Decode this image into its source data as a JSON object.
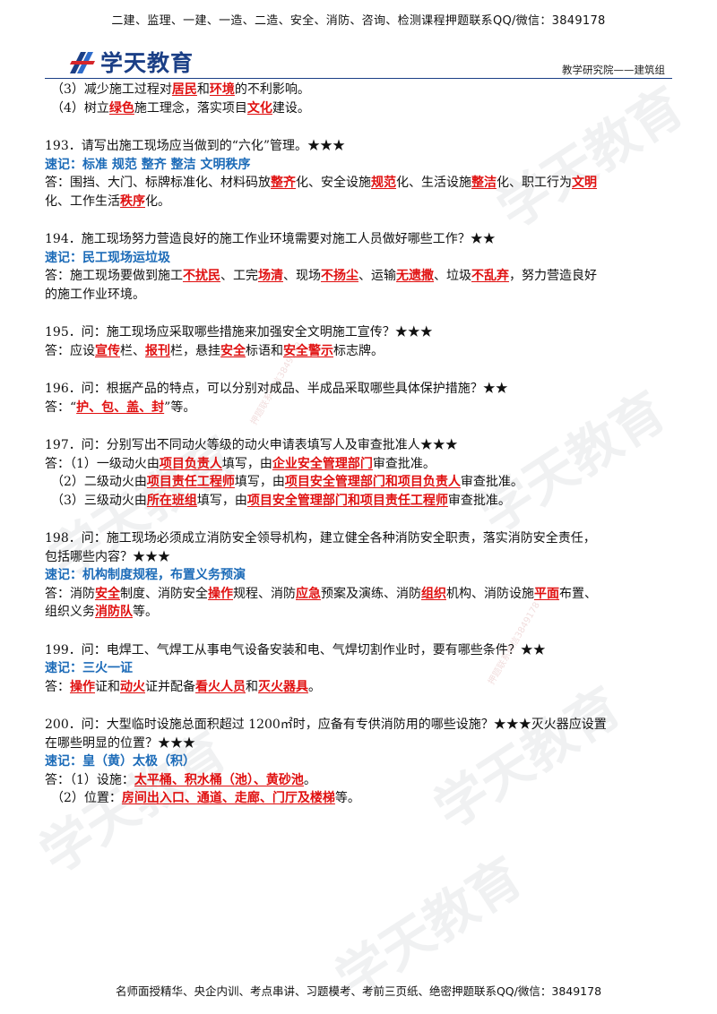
{
  "header": {
    "top_text": "二建、监理、一建、一造、二造、安全、消防、咨询、检测课程押题联系QQ/微信：3849178",
    "logo_text": "学天教育",
    "dept": "教学研究院——建筑组"
  },
  "watermark": {
    "text": "学天教育",
    "small": "押题联系微信3849178"
  },
  "blocks": [
    {
      "type": "line",
      "indent": true,
      "parts": [
        {
          "t": "（3）减少施工过程对"
        },
        {
          "t": "居民",
          "r": 1
        },
        {
          "t": "和"
        },
        {
          "t": "环境",
          "r": 1
        },
        {
          "t": "的不利影响。"
        }
      ]
    },
    {
      "type": "line",
      "indent": true,
      "parts": [
        {
          "t": "（4）树立"
        },
        {
          "t": "绿色",
          "r": 1
        },
        {
          "t": "施工理念，落实项目"
        },
        {
          "t": "文化",
          "r": 1
        },
        {
          "t": "建设。"
        }
      ]
    },
    {
      "type": "gap"
    },
    {
      "type": "line",
      "parts": [
        {
          "t": "193．请写出施工现场应当做到的“六化”管理。★★★"
        }
      ]
    },
    {
      "type": "line",
      "parts": [
        {
          "t": "速记：标准 规范 整齐 整洁 文明秩序",
          "sj": 1
        }
      ]
    },
    {
      "type": "line",
      "parts": [
        {
          "t": "答：围挡、大门、标牌标准化、材料码放"
        },
        {
          "t": "整齐",
          "r": 1
        },
        {
          "t": "化、安全设施"
        },
        {
          "t": "规范",
          "r": 1
        },
        {
          "t": "化、生活设施"
        },
        {
          "t": "整洁",
          "r": 1
        },
        {
          "t": "化、职工行为"
        },
        {
          "t": "文明",
          "r": 1
        }
      ]
    },
    {
      "type": "line",
      "parts": [
        {
          "t": "化、工作生活"
        },
        {
          "t": "秩序",
          "r": 1
        },
        {
          "t": "化。"
        }
      ]
    },
    {
      "type": "gap"
    },
    {
      "type": "line",
      "parts": [
        {
          "t": "194．施工现场努力营造良好的施工作业环境需要对施工人员做好哪些工作？★★"
        }
      ]
    },
    {
      "type": "line",
      "parts": [
        {
          "t": "速记：民工现场运垃圾",
          "sj": 1
        }
      ]
    },
    {
      "type": "line",
      "parts": [
        {
          "t": "答：施工现场要做到施工"
        },
        {
          "t": "不扰民",
          "r": 1
        },
        {
          "t": "、工完"
        },
        {
          "t": "场清",
          "r": 1
        },
        {
          "t": "、现场"
        },
        {
          "t": "不扬尘",
          "r": 1
        },
        {
          "t": "、运输"
        },
        {
          "t": "无遗撒",
          "r": 1
        },
        {
          "t": "、垃圾"
        },
        {
          "t": "不乱弃",
          "r": 1
        },
        {
          "t": "，努力营造良好"
        }
      ]
    },
    {
      "type": "line",
      "parts": [
        {
          "t": "的施工作业环境。"
        }
      ]
    },
    {
      "type": "gap"
    },
    {
      "type": "line",
      "parts": [
        {
          "t": "195．问：施工现场应采取哪些措施来加强安全文明施工宣传？★★★"
        }
      ]
    },
    {
      "type": "line",
      "parts": [
        {
          "t": "答：应设"
        },
        {
          "t": "宣传",
          "r": 1
        },
        {
          "t": "栏、"
        },
        {
          "t": "报刊",
          "r": 1
        },
        {
          "t": "栏，悬挂"
        },
        {
          "t": "安全",
          "r": 1
        },
        {
          "t": "标语和"
        },
        {
          "t": "安全警示",
          "r": 1
        },
        {
          "t": "标志牌。"
        }
      ]
    },
    {
      "type": "gap"
    },
    {
      "type": "line",
      "parts": [
        {
          "t": "196．问：根据产品的特点，可以分别对成品、半成品采取哪些具体保护措施？★★"
        }
      ]
    },
    {
      "type": "line",
      "parts": [
        {
          "t": "答：“"
        },
        {
          "t": "护、包、盖、封",
          "r": 1
        },
        {
          "t": "”等。"
        }
      ]
    },
    {
      "type": "gap"
    },
    {
      "type": "line",
      "parts": [
        {
          "t": "197．问：分别写出不同动火等级的动火申请表填写人及审查批准人★★★"
        }
      ]
    },
    {
      "type": "line",
      "parts": [
        {
          "t": "答：（1）一级动火由"
        },
        {
          "t": "项目负责人",
          "r": 1
        },
        {
          "t": "填写，由"
        },
        {
          "t": "企业安全管理部门",
          "r": 1
        },
        {
          "t": "审查批准。"
        }
      ]
    },
    {
      "type": "line",
      "indent": true,
      "parts": [
        {
          "t": "（2）二级动火由"
        },
        {
          "t": "项目责任工程师",
          "r": 1
        },
        {
          "t": "填写，由"
        },
        {
          "t": "项目安全管理部门和项目负责人",
          "r": 1
        },
        {
          "t": "审查批准。"
        }
      ]
    },
    {
      "type": "line",
      "indent": true,
      "parts": [
        {
          "t": "（3）三级动火由"
        },
        {
          "t": "所在班组",
          "r": 1
        },
        {
          "t": "填写，由"
        },
        {
          "t": "项目安全管理部门和项目责任工程师",
          "r": 1
        },
        {
          "t": "审查批准。"
        }
      ]
    },
    {
      "type": "gap"
    },
    {
      "type": "line",
      "parts": [
        {
          "t": "198．问：施工现场必须成立消防安全领导机构，建立健全各种消防安全职责，落实消防安全责任，"
        }
      ]
    },
    {
      "type": "line",
      "parts": [
        {
          "t": "包括哪些内容？★★★"
        }
      ]
    },
    {
      "type": "line",
      "parts": [
        {
          "t": "速记：机构制度规程，布置义务预演",
          "sj": 1
        }
      ]
    },
    {
      "type": "line",
      "parts": [
        {
          "t": "答：消防"
        },
        {
          "t": "安全",
          "r": 1
        },
        {
          "t": "制度、消防安全"
        },
        {
          "t": "操作",
          "r": 1
        },
        {
          "t": "规程、消防"
        },
        {
          "t": "应急",
          "r": 1
        },
        {
          "t": "预案及演练、消防"
        },
        {
          "t": "组织",
          "r": 1
        },
        {
          "t": "机构、消防设施"
        },
        {
          "t": "平面",
          "r": 1
        },
        {
          "t": "布置、"
        }
      ]
    },
    {
      "type": "line",
      "parts": [
        {
          "t": "组织义务"
        },
        {
          "t": "消防队",
          "r": 1
        },
        {
          "t": "等。"
        }
      ]
    },
    {
      "type": "gap"
    },
    {
      "type": "line",
      "parts": [
        {
          "t": "199．问：电焊工、气焊工从事电气设备安装和电、气焊切割作业时，要有哪些条件？★★"
        }
      ]
    },
    {
      "type": "line",
      "parts": [
        {
          "t": "速记：三火一证",
          "sj": 1
        }
      ]
    },
    {
      "type": "line",
      "parts": [
        {
          "t": "答："
        },
        {
          "t": "操作",
          "r": 1
        },
        {
          "t": "证和"
        },
        {
          "t": "动火",
          "r": 1
        },
        {
          "t": "证并配备"
        },
        {
          "t": "看火人员",
          "r": 1
        },
        {
          "t": "和"
        },
        {
          "t": "灭火器具",
          "r": 1
        },
        {
          "t": "。"
        }
      ]
    },
    {
      "type": "gap"
    },
    {
      "type": "line",
      "parts": [
        {
          "t": "200．问：大型临时设施总面积超过 1200㎡时，应备有专供消防用的哪些设施？★★★灭火器应设置"
        }
      ]
    },
    {
      "type": "line",
      "parts": [
        {
          "t": "在哪些明显的位置？★★★"
        }
      ]
    },
    {
      "type": "line",
      "parts": [
        {
          "t": "速记：皇（黄）太极（积）",
          "sj": 1
        }
      ]
    },
    {
      "type": "line",
      "parts": [
        {
          "t": "答：（1）设施："
        },
        {
          "t": "太平桶、积水桶（池）、黄砂池",
          "r": 1
        },
        {
          "t": "。"
        }
      ]
    },
    {
      "type": "line",
      "indent": true,
      "parts": [
        {
          "t": "（2）位置："
        },
        {
          "t": "房间出入口、通道、走廊、门厅及楼梯",
          "r": 1
        },
        {
          "t": "等。"
        }
      ]
    }
  ],
  "footer": {
    "text": "名师面授精华、央企内训、考点串讲、习题模考、考前三页纸、绝密押题联系QQ/微信：3849178"
  }
}
